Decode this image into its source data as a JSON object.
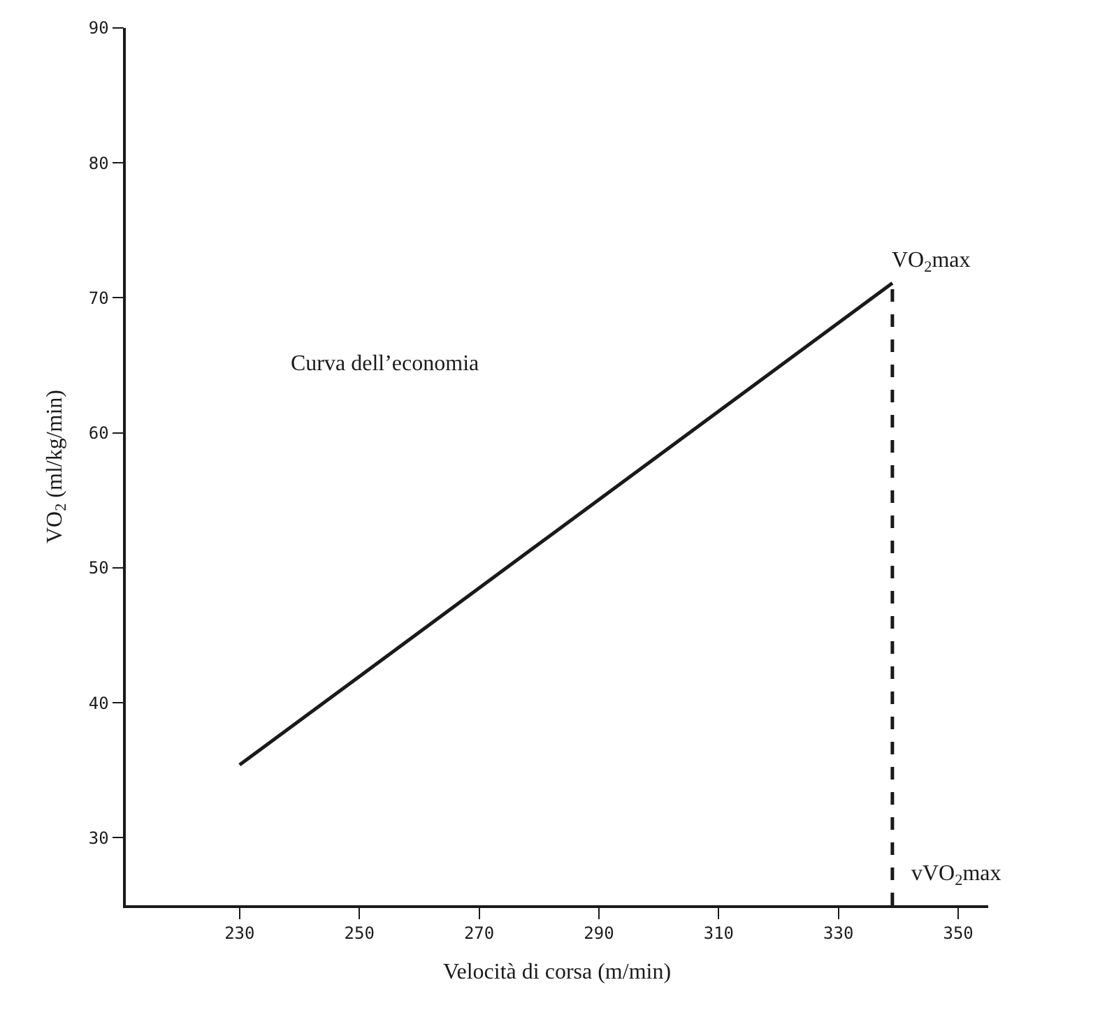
{
  "chart_data": {
    "type": "line",
    "xlabel": "Velocità di corsa (m/min)",
    "ylabel": "VO$_{2}$ (ml/kg/min)",
    "x": [
      230,
      339
    ],
    "series": [
      {
        "values": [
          35.4,
          71.1
        ],
        "color": "#1a1a1a",
        "line_style": "solid"
      }
    ],
    "ref_lines": [
      {
        "axis": "x",
        "value": 339,
        "label": "vVO$_{2}$max",
        "color": "#1a1a1a",
        "line_style": "dashed"
      }
    ],
    "xlim": [
      211,
      355
    ],
    "xticks": [
      230,
      250,
      270,
      290,
      310,
      330,
      350
    ],
    "ylim": [
      25,
      90
    ],
    "yticks": [
      30,
      40,
      50,
      60,
      70,
      80,
      90
    ],
    "marker": "none",
    "annotations": [
      "Curva dell’economia",
      {
        "text": "VO$_{2}$max",
        "x": 339,
        "y": 71.1
      }
    ]
  }
}
